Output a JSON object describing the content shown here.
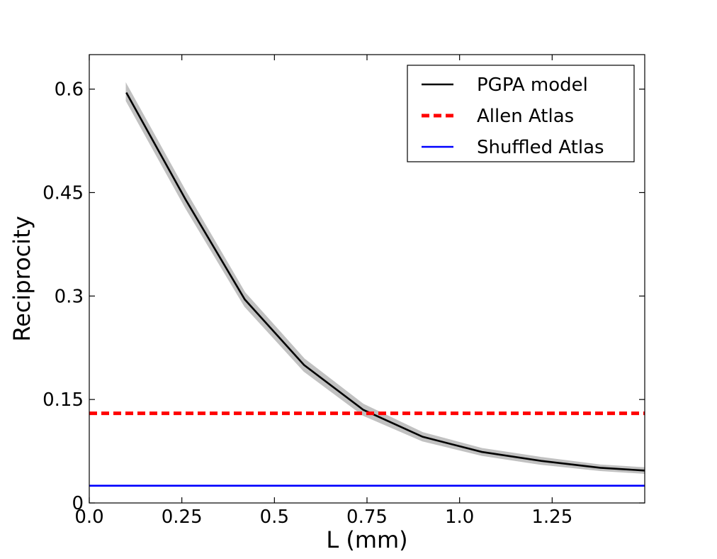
{
  "chart_data": {
    "type": "line",
    "xlabel": "L (mm)",
    "ylabel": "Reciprocity",
    "xlim": [
      0.0,
      1.5
    ],
    "ylim": [
      0.0,
      0.65
    ],
    "xticks": [
      0.0,
      0.25,
      0.5,
      0.75,
      1.0,
      1.25
    ],
    "xtick_labels": [
      "0.0",
      "0.25",
      "0.5",
      "0.75",
      "1.0",
      "1.25"
    ],
    "yticks": [
      0,
      0.15,
      0.3,
      0.45,
      0.6
    ],
    "ytick_labels": [
      "0",
      "0.15",
      "0.3",
      "0.45",
      "0.6"
    ],
    "grid": false,
    "legend_position": "top-right",
    "series": [
      {
        "name": "PGPA model",
        "color": "#000000",
        "style": "solid",
        "band_color": "#bbbbbb",
        "x": [
          0.1,
          0.26,
          0.42,
          0.58,
          0.74,
          0.9,
          1.06,
          1.22,
          1.38,
          1.5
        ],
        "y": [
          0.595,
          0.44,
          0.295,
          0.2,
          0.135,
          0.096,
          0.074,
          0.061,
          0.051,
          0.047
        ],
        "band": [
          0.012,
          0.012,
          0.01,
          0.009,
          0.008,
          0.006,
          0.005,
          0.005,
          0.004,
          0.004
        ]
      },
      {
        "name": "Allen Atlas",
        "color": "#ff0000",
        "style": "dashed",
        "x": [
          0.0,
          1.5
        ],
        "y": [
          0.13,
          0.13
        ]
      },
      {
        "name": "Shuffled Atlas",
        "color": "#0000ff",
        "style": "solid",
        "x": [
          0.0,
          1.5
        ],
        "y": [
          0.025,
          0.025
        ]
      }
    ]
  }
}
